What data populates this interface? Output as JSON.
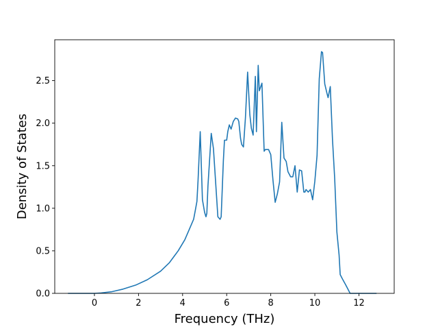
{
  "chart_data": {
    "type": "line",
    "title": "",
    "xlabel": "Frequency (THz)",
    "ylabel": "Density of States",
    "xlim": [
      -1.8,
      13.6
    ],
    "ylim": [
      0.0,
      2.98
    ],
    "grid": false,
    "legend": "none",
    "line_color": "#1f77b4",
    "x_ticks": [
      {
        "value": 0,
        "label": "0"
      },
      {
        "value": 2,
        "label": "2"
      },
      {
        "value": 4,
        "label": "4"
      },
      {
        "value": 6,
        "label": "6"
      },
      {
        "value": 8,
        "label": "8"
      },
      {
        "value": 10,
        "label": "10"
      },
      {
        "value": 12,
        "label": "12"
      }
    ],
    "y_ticks": [
      {
        "value": 0.0,
        "label": "0.0"
      },
      {
        "value": 0.5,
        "label": "0.5"
      },
      {
        "value": 1.0,
        "label": "1.0"
      },
      {
        "value": 1.5,
        "label": "1.5"
      },
      {
        "value": 2.0,
        "label": "2.0"
      },
      {
        "value": 2.5,
        "label": "2.5"
      }
    ],
    "series": [
      {
        "x": [
          -1.2,
          -0.5,
          0.0,
          0.3,
          0.8,
          1.3,
          1.9,
          2.4,
          3.0,
          3.4,
          3.8,
          4.1,
          4.3,
          4.5,
          4.58,
          4.65,
          4.7,
          4.8,
          4.9,
          5.0,
          5.06,
          5.1,
          5.15,
          5.3,
          5.4,
          5.5,
          5.6,
          5.7,
          5.75,
          5.85,
          5.9,
          6.0,
          6.05,
          6.12,
          6.2,
          6.3,
          6.4,
          6.5,
          6.55,
          6.63,
          6.68,
          6.76,
          6.85,
          6.95,
          7.05,
          7.12,
          7.2,
          7.3,
          7.35,
          7.43,
          7.48,
          7.6,
          7.7,
          7.75,
          7.9,
          8.0,
          8.1,
          8.15,
          8.2,
          8.3,
          8.4,
          8.5,
          8.6,
          8.7,
          8.78,
          8.9,
          9.0,
          9.1,
          9.2,
          9.3,
          9.4,
          9.5,
          9.55,
          9.6,
          9.7,
          9.8,
          9.9,
          10.0,
          10.1,
          10.2,
          10.3,
          10.35,
          10.45,
          10.55,
          10.6,
          10.7,
          10.8,
          10.9,
          11.0,
          11.1,
          11.15,
          11.25,
          11.4,
          11.6,
          11.8,
          12.3,
          12.8
        ],
        "y": [
          0.0,
          0.0,
          0.0,
          0.005,
          0.02,
          0.05,
          0.1,
          0.16,
          0.26,
          0.36,
          0.5,
          0.63,
          0.75,
          0.87,
          0.98,
          1.08,
          1.32,
          1.9,
          1.1,
          0.95,
          0.9,
          0.94,
          1.26,
          1.88,
          1.7,
          1.3,
          0.9,
          0.87,
          0.9,
          1.56,
          1.8,
          1.8,
          1.9,
          1.98,
          1.93,
          2.02,
          2.06,
          2.05,
          2.02,
          1.82,
          1.75,
          1.72,
          2.06,
          2.6,
          2.1,
          1.94,
          1.86,
          2.55,
          1.9,
          2.68,
          2.38,
          2.47,
          1.67,
          1.69,
          1.69,
          1.63,
          1.33,
          1.2,
          1.07,
          1.17,
          1.31,
          2.01,
          1.59,
          1.55,
          1.43,
          1.37,
          1.37,
          1.5,
          1.19,
          1.45,
          1.44,
          1.19,
          1.19,
          1.22,
          1.19,
          1.22,
          1.1,
          1.32,
          1.62,
          2.52,
          2.84,
          2.83,
          2.46,
          2.35,
          2.3,
          2.43,
          1.81,
          1.35,
          0.72,
          0.45,
          0.22,
          0.17,
          0.1,
          0.0,
          0.0,
          0.0,
          0.0
        ]
      }
    ]
  }
}
